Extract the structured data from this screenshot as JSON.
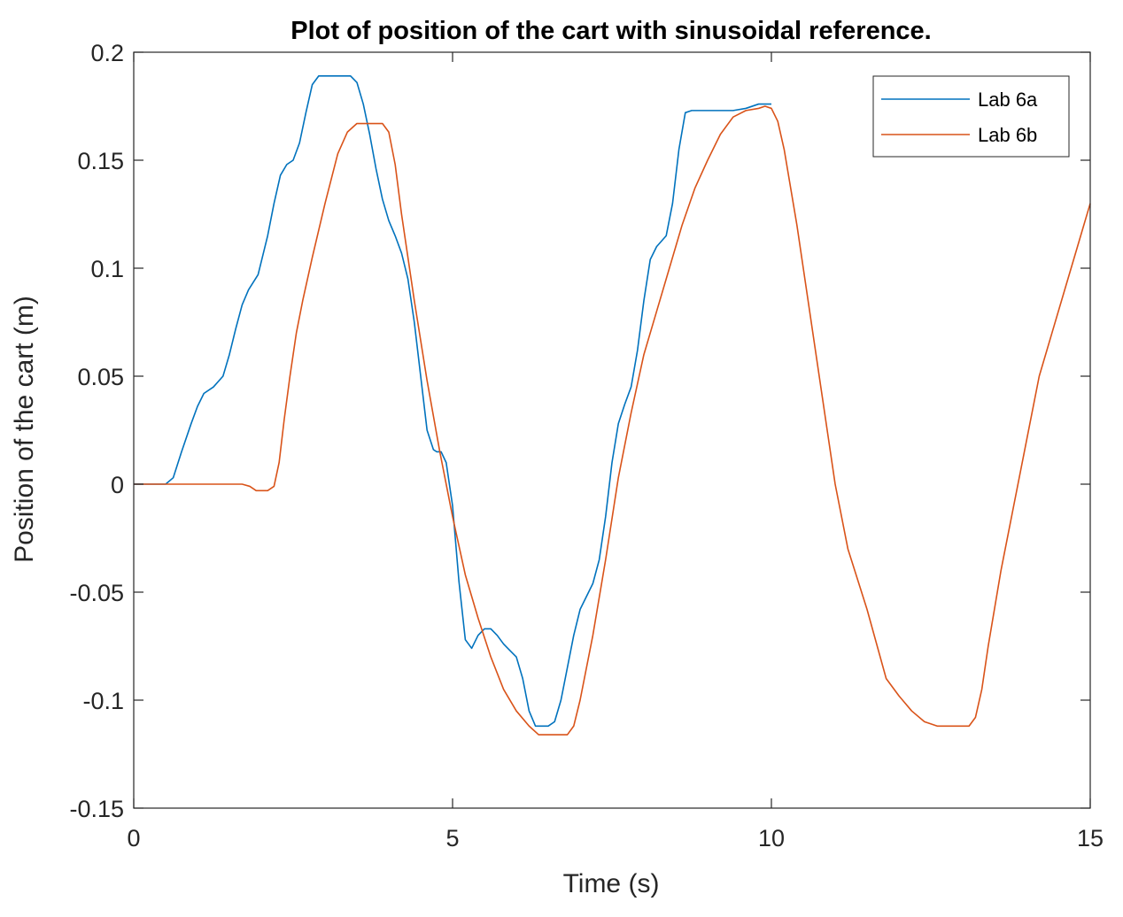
{
  "chart_data": {
    "type": "line",
    "title": "Plot of position of the cart with sinusoidal reference.",
    "xlabel": "Time (s)",
    "ylabel": "Position of the cart (m)",
    "xlim": [
      0,
      15
    ],
    "ylim": [
      -0.15,
      0.2
    ],
    "xticks": [
      0,
      5,
      10,
      15
    ],
    "xtick_labels": [
      "0",
      "5",
      "10",
      "15"
    ],
    "yticks": [
      -0.15,
      -0.1,
      -0.05,
      0,
      0.05,
      0.1,
      0.15,
      0.2
    ],
    "ytick_labels": [
      "-0.15",
      "-0.1",
      "-0.05",
      "0",
      "0.05",
      "0.1",
      "0.15",
      "0.2"
    ],
    "grid": false,
    "legend_position": "top-right",
    "series": [
      {
        "name": "Lab 6a",
        "color": "#0072BD",
        "x": [
          0,
          0.5,
          0.62,
          0.75,
          0.9,
          1.0,
          1.1,
          1.25,
          1.4,
          1.5,
          1.6,
          1.7,
          1.8,
          1.95,
          2.1,
          2.2,
          2.3,
          2.4,
          2.5,
          2.6,
          2.7,
          2.8,
          2.9,
          3.0,
          3.4,
          3.5,
          3.6,
          3.7,
          3.8,
          3.9,
          4.0,
          4.1,
          4.2,
          4.3,
          4.4,
          4.5,
          4.6,
          4.7,
          4.75,
          4.82,
          4.9,
          5.0,
          5.1,
          5.2,
          5.3,
          5.4,
          5.5,
          5.6,
          5.7,
          5.8,
          5.9,
          6.0,
          6.1,
          6.2,
          6.3,
          6.5,
          6.6,
          6.7,
          6.8,
          6.9,
          7.0,
          7.2,
          7.3,
          7.4,
          7.5,
          7.6,
          7.7,
          7.8,
          7.9,
          8.0,
          8.1,
          8.2,
          8.35,
          8.45,
          8.55,
          8.65,
          8.75,
          8.85,
          9.0,
          9.2,
          9.4,
          9.6,
          9.8,
          10.0
        ],
        "y": [
          0,
          0,
          0.003,
          0.015,
          0.028,
          0.036,
          0.042,
          0.045,
          0.05,
          0.06,
          0.072,
          0.083,
          0.09,
          0.097,
          0.115,
          0.13,
          0.143,
          0.148,
          0.15,
          0.158,
          0.172,
          0.185,
          0.189,
          0.189,
          0.189,
          0.186,
          0.176,
          0.162,
          0.146,
          0.132,
          0.122,
          0.115,
          0.107,
          0.095,
          0.075,
          0.05,
          0.025,
          0.016,
          0.015,
          0.015,
          0.01,
          -0.01,
          -0.045,
          -0.072,
          -0.076,
          -0.07,
          -0.067,
          -0.067,
          -0.07,
          -0.074,
          -0.077,
          -0.08,
          -0.09,
          -0.105,
          -0.112,
          -0.112,
          -0.11,
          -0.1,
          -0.085,
          -0.07,
          -0.058,
          -0.046,
          -0.035,
          -0.015,
          0.01,
          0.028,
          0.037,
          0.045,
          0.062,
          0.085,
          0.104,
          0.11,
          0.115,
          0.13,
          0.155,
          0.172,
          0.173,
          0.173,
          0.173,
          0.173,
          0.173,
          0.174,
          0.176,
          0.176
        ]
      },
      {
        "name": "Lab 6b",
        "color": "#D95319",
        "x": [
          0,
          1.7,
          1.82,
          1.92,
          2.0,
          2.1,
          2.2,
          2.28,
          2.36,
          2.45,
          2.55,
          2.65,
          2.8,
          3.0,
          3.2,
          3.35,
          3.5,
          3.6,
          3.9,
          4.0,
          4.1,
          4.2,
          4.4,
          4.6,
          4.8,
          5.0,
          5.2,
          5.4,
          5.6,
          5.8,
          6.0,
          6.2,
          6.35,
          6.5,
          6.8,
          6.9,
          7.0,
          7.2,
          7.4,
          7.6,
          7.8,
          8.0,
          8.2,
          8.4,
          8.6,
          8.8,
          9.0,
          9.2,
          9.4,
          9.6,
          9.8,
          9.9,
          10.0,
          10.1,
          10.2,
          10.4,
          10.6,
          10.8,
          11.0,
          11.2,
          11.5,
          11.8,
          12.0,
          12.2,
          12.4,
          12.6,
          12.8,
          13.0,
          13.1,
          13.2,
          13.3,
          13.4,
          13.6,
          13.8,
          14.0,
          14.2,
          14.4,
          14.6,
          14.8,
          15.0
        ],
        "y": [
          0,
          0,
          -0.001,
          -0.003,
          -0.003,
          -0.003,
          -0.001,
          0.01,
          0.03,
          0.05,
          0.07,
          0.085,
          0.105,
          0.13,
          0.153,
          0.163,
          0.167,
          0.167,
          0.167,
          0.163,
          0.148,
          0.125,
          0.085,
          0.048,
          0.015,
          -0.015,
          -0.042,
          -0.062,
          -0.08,
          -0.095,
          -0.105,
          -0.112,
          -0.116,
          -0.116,
          -0.116,
          -0.112,
          -0.1,
          -0.07,
          -0.035,
          0.003,
          0.033,
          0.06,
          0.08,
          0.1,
          0.12,
          0.137,
          0.15,
          0.162,
          0.17,
          0.173,
          0.174,
          0.175,
          0.174,
          0.168,
          0.155,
          0.12,
          0.08,
          0.04,
          0.0,
          -0.03,
          -0.058,
          -0.09,
          -0.098,
          -0.105,
          -0.11,
          -0.112,
          -0.112,
          -0.112,
          -0.112,
          -0.108,
          -0.095,
          -0.075,
          -0.04,
          -0.01,
          0.02,
          0.05,
          0.07,
          0.09,
          0.11,
          0.13
        ]
      }
    ]
  }
}
